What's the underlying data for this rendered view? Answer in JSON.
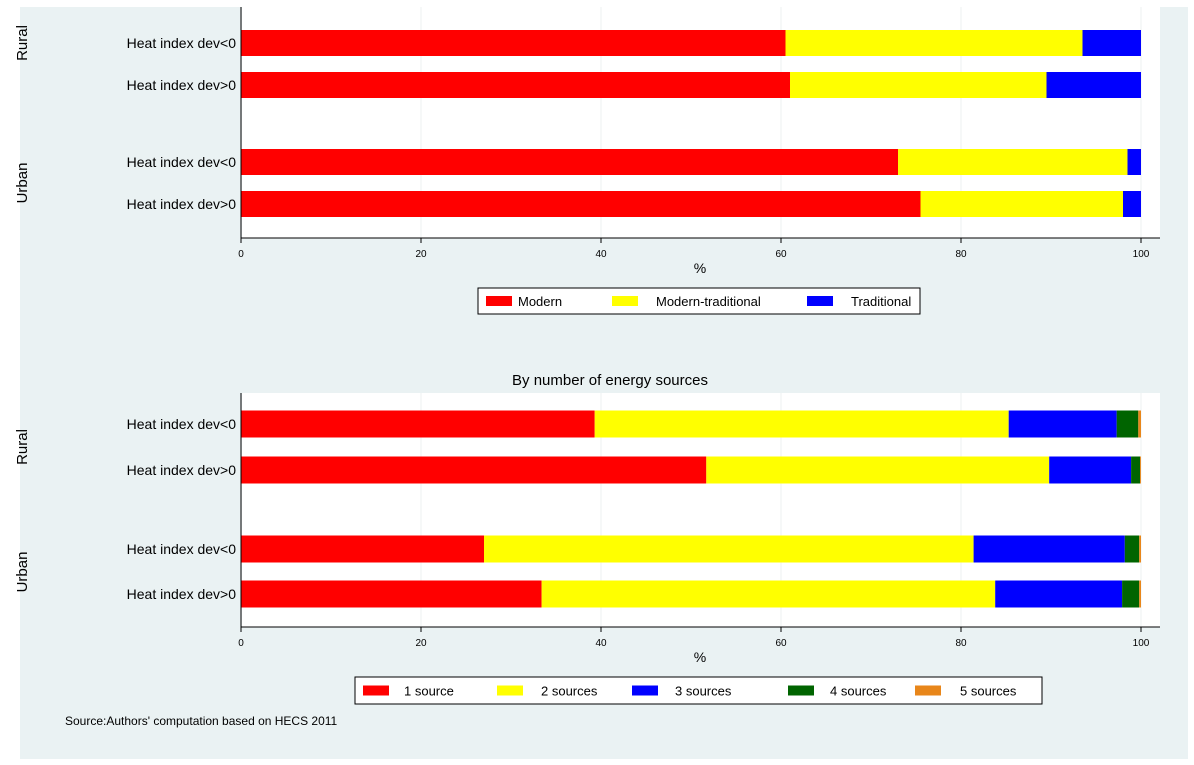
{
  "chart_data": [
    {
      "type": "bar",
      "orientation": "horizontal",
      "stacked": true,
      "title": "",
      "xlabel": "%",
      "xlim": [
        0,
        100
      ],
      "xticks": [
        0,
        20,
        40,
        60,
        80,
        100
      ],
      "grid": true,
      "legend_position": "bottom",
      "groups": [
        {
          "name": "Rural",
          "categories": [
            "Heat index dev<0",
            "Heat index dev>0"
          ]
        },
        {
          "name": "Urban",
          "categories": [
            "Heat index dev<0",
            "Heat index dev>0"
          ]
        }
      ],
      "series": [
        {
          "name": "Modern",
          "color": "#ff0000",
          "values": [
            60.5,
            61.0,
            73.0,
            75.5
          ]
        },
        {
          "name": "Modern-traditional",
          "color": "#ffff00",
          "values": [
            33.0,
            28.5,
            25.5,
            22.5
          ]
        },
        {
          "name": "Traditional",
          "color": "#0000ff",
          "values": [
            6.5,
            10.5,
            1.5,
            2.0
          ]
        }
      ]
    },
    {
      "type": "bar",
      "orientation": "horizontal",
      "stacked": true,
      "title": "By number of energy sources",
      "xlabel": "%",
      "xlim": [
        0,
        100
      ],
      "xticks": [
        0,
        20,
        40,
        60,
        80,
        100
      ],
      "grid": true,
      "legend_position": "bottom",
      "groups": [
        {
          "name": "Rural",
          "categories": [
            "Heat index dev<0",
            "Heat index dev>0"
          ]
        },
        {
          "name": "Urban",
          "categories": [
            "Heat index dev<0",
            "Heat index dev>0"
          ]
        }
      ],
      "series": [
        {
          "name": "1 source",
          "color": "#ff0000",
          "values": [
            39.3,
            51.7,
            27.0,
            33.4
          ]
        },
        {
          "name": "2 sources",
          "color": "#ffff00",
          "values": [
            46.0,
            38.1,
            54.4,
            50.4
          ]
        },
        {
          "name": "3 sources",
          "color": "#0000ff",
          "values": [
            12.0,
            9.1,
            16.8,
            14.1
          ]
        },
        {
          "name": "4 sources",
          "color": "#006400",
          "values": [
            2.4,
            1.0,
            1.6,
            1.9
          ]
        },
        {
          "name": "5 sources",
          "color": "#e8861a",
          "values": [
            0.3,
            0.1,
            0.2,
            0.2
          ]
        }
      ]
    }
  ],
  "note": "Source:Authors' computation based on HECS 2011"
}
